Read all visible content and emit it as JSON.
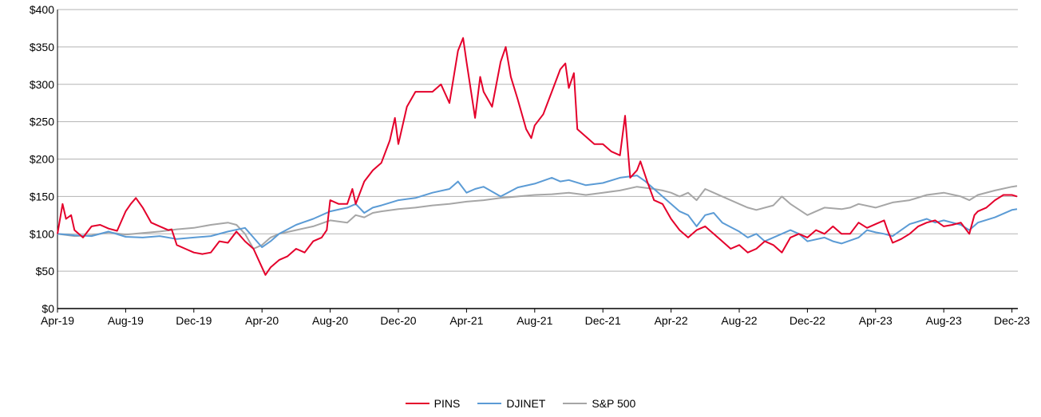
{
  "chart_data": {
    "type": "line",
    "title": "",
    "xlabel": "",
    "ylabel": "",
    "ylim": [
      0,
      400
    ],
    "xlim_months_from_apr19": [
      0,
      56.3
    ],
    "grid": true,
    "legend_position": "bottom",
    "y_ticks": [
      "$0",
      "$50",
      "$100",
      "$150",
      "$200",
      "$250",
      "$300",
      "$350",
      "$400"
    ],
    "x_ticks": [
      "Apr-19",
      "Aug-19",
      "Dec-19",
      "Apr-20",
      "Aug-20",
      "Dec-20",
      "Apr-21",
      "Aug-21",
      "Dec-21",
      "Apr-22",
      "Aug-22",
      "Dec-22",
      "Apr-23",
      "Aug-23",
      "Dec-23"
    ],
    "series": [
      {
        "name": "PINS",
        "color": "#e4002b",
        "points": [
          [
            0,
            100
          ],
          [
            0.3,
            140
          ],
          [
            0.5,
            120
          ],
          [
            0.8,
            125
          ],
          [
            1,
            105
          ],
          [
            1.5,
            95
          ],
          [
            2,
            110
          ],
          [
            2.5,
            112
          ],
          [
            3,
            107
          ],
          [
            3.5,
            104
          ],
          [
            4,
            130
          ],
          [
            4.3,
            140
          ],
          [
            4.6,
            148
          ],
          [
            5,
            135
          ],
          [
            5.5,
            115
          ],
          [
            6,
            110
          ],
          [
            6.5,
            105
          ],
          [
            6.7,
            106
          ],
          [
            7,
            85
          ],
          [
            7.5,
            80
          ],
          [
            8,
            75
          ],
          [
            8.5,
            73
          ],
          [
            9,
            75
          ],
          [
            9.5,
            90
          ],
          [
            10,
            88
          ],
          [
            10.5,
            103
          ],
          [
            11,
            90
          ],
          [
            11.5,
            80
          ],
          [
            12,
            55
          ],
          [
            12.2,
            45
          ],
          [
            12.5,
            55
          ],
          [
            13,
            65
          ],
          [
            13.5,
            70
          ],
          [
            14,
            80
          ],
          [
            14.5,
            75
          ],
          [
            15,
            90
          ],
          [
            15.5,
            95
          ],
          [
            15.8,
            105
          ],
          [
            16,
            145
          ],
          [
            16.5,
            140
          ],
          [
            17,
            140
          ],
          [
            17.3,
            160
          ],
          [
            17.5,
            140
          ],
          [
            18,
            170
          ],
          [
            18.5,
            185
          ],
          [
            19,
            195
          ],
          [
            19.5,
            225
          ],
          [
            19.8,
            255
          ],
          [
            20,
            220
          ],
          [
            20.5,
            270
          ],
          [
            21,
            290
          ],
          [
            21.5,
            290
          ],
          [
            22,
            290
          ],
          [
            22.5,
            300
          ],
          [
            23,
            275
          ],
          [
            23.5,
            345
          ],
          [
            23.8,
            362
          ],
          [
            24,
            330
          ],
          [
            24.2,
            300
          ],
          [
            24.5,
            255
          ],
          [
            24.8,
            310
          ],
          [
            25,
            290
          ],
          [
            25.5,
            270
          ],
          [
            26,
            330
          ],
          [
            26.3,
            350
          ],
          [
            26.6,
            310
          ],
          [
            27,
            280
          ],
          [
            27.5,
            240
          ],
          [
            27.8,
            228
          ],
          [
            28,
            245
          ],
          [
            28.5,
            260
          ],
          [
            29,
            290
          ],
          [
            29.5,
            320
          ],
          [
            29.8,
            328
          ],
          [
            30,
            295
          ],
          [
            30.3,
            315
          ],
          [
            30.5,
            240
          ],
          [
            31,
            230
          ],
          [
            31.5,
            220
          ],
          [
            32,
            220
          ],
          [
            32.5,
            210
          ],
          [
            33,
            205
          ],
          [
            33.3,
            258
          ],
          [
            33.6,
            175
          ],
          [
            34,
            185
          ],
          [
            34.2,
            197
          ],
          [
            34.6,
            170
          ],
          [
            35,
            145
          ],
          [
            35.5,
            140
          ],
          [
            36,
            120
          ],
          [
            36.5,
            105
          ],
          [
            37,
            95
          ],
          [
            37.5,
            105
          ],
          [
            38,
            110
          ],
          [
            38.5,
            100
          ],
          [
            39,
            90
          ],
          [
            39.5,
            80
          ],
          [
            40,
            85
          ],
          [
            40.5,
            75
          ],
          [
            41,
            80
          ],
          [
            41.5,
            90
          ],
          [
            42,
            85
          ],
          [
            42.5,
            75
          ],
          [
            43,
            95
          ],
          [
            43.5,
            100
          ],
          [
            44,
            95
          ],
          [
            44.5,
            105
          ],
          [
            45,
            100
          ],
          [
            45.5,
            110
          ],
          [
            46,
            100
          ],
          [
            46.5,
            100
          ],
          [
            47,
            115
          ],
          [
            47.5,
            108
          ],
          [
            48,
            113
          ],
          [
            48.5,
            118
          ],
          [
            48.7,
            105
          ],
          [
            49,
            88
          ],
          [
            49.5,
            93
          ],
          [
            50,
            100
          ],
          [
            50.5,
            110
          ],
          [
            51,
            115
          ],
          [
            51.5,
            118
          ],
          [
            52,
            110
          ],
          [
            52.5,
            112
          ],
          [
            53,
            115
          ],
          [
            53.5,
            100
          ],
          [
            53.8,
            125
          ],
          [
            54,
            130
          ],
          [
            54.5,
            135
          ],
          [
            55,
            145
          ],
          [
            55.5,
            152
          ],
          [
            56,
            152
          ],
          [
            56.3,
            150
          ]
        ]
      },
      {
        "name": "DJINET",
        "color": "#5b9bd5",
        "points": [
          [
            0,
            100
          ],
          [
            1,
            98
          ],
          [
            2,
            97
          ],
          [
            3,
            103
          ],
          [
            4,
            96
          ],
          [
            5,
            95
          ],
          [
            6,
            97
          ],
          [
            7,
            93
          ],
          [
            8,
            95
          ],
          [
            9,
            97
          ],
          [
            10,
            103
          ],
          [
            11,
            108
          ],
          [
            11.5,
            95
          ],
          [
            12,
            82
          ],
          [
            12.5,
            90
          ],
          [
            13,
            100
          ],
          [
            14,
            112
          ],
          [
            15,
            120
          ],
          [
            16,
            130
          ],
          [
            17,
            135
          ],
          [
            17.5,
            140
          ],
          [
            18,
            128
          ],
          [
            18.5,
            135
          ],
          [
            19,
            138
          ],
          [
            20,
            145
          ],
          [
            21,
            148
          ],
          [
            22,
            155
          ],
          [
            23,
            160
          ],
          [
            23.5,
            170
          ],
          [
            24,
            155
          ],
          [
            24.5,
            160
          ],
          [
            25,
            163
          ],
          [
            26,
            150
          ],
          [
            27,
            162
          ],
          [
            28,
            167
          ],
          [
            29,
            175
          ],
          [
            29.5,
            170
          ],
          [
            30,
            172
          ],
          [
            31,
            165
          ],
          [
            32,
            168
          ],
          [
            33,
            175
          ],
          [
            34,
            178
          ],
          [
            34.5,
            170
          ],
          [
            35,
            160
          ],
          [
            35.5,
            150
          ],
          [
            36,
            140
          ],
          [
            36.5,
            130
          ],
          [
            37,
            125
          ],
          [
            37.5,
            110
          ],
          [
            38,
            125
          ],
          [
            38.5,
            128
          ],
          [
            39,
            115
          ],
          [
            40,
            103
          ],
          [
            40.5,
            95
          ],
          [
            41,
            100
          ],
          [
            41.5,
            90
          ],
          [
            42,
            95
          ],
          [
            43,
            105
          ],
          [
            43.5,
            100
          ],
          [
            44,
            90
          ],
          [
            45,
            95
          ],
          [
            45.5,
            90
          ],
          [
            46,
            87
          ],
          [
            47,
            95
          ],
          [
            47.5,
            105
          ],
          [
            48,
            102
          ],
          [
            48.5,
            100
          ],
          [
            49,
            97
          ],
          [
            49.5,
            105
          ],
          [
            50,
            113
          ],
          [
            51,
            120
          ],
          [
            51.5,
            115
          ],
          [
            52,
            118
          ],
          [
            53,
            112
          ],
          [
            53.5,
            105
          ],
          [
            54,
            115
          ],
          [
            55,
            122
          ],
          [
            56,
            132
          ],
          [
            56.3,
            133
          ]
        ]
      },
      {
        "name": "S&P 500",
        "color": "#a6a6a6",
        "points": [
          [
            0,
            100
          ],
          [
            1,
            97
          ],
          [
            2,
            98
          ],
          [
            3,
            102
          ],
          [
            4,
            99
          ],
          [
            5,
            101
          ],
          [
            6,
            103
          ],
          [
            7,
            106
          ],
          [
            8,
            108
          ],
          [
            9,
            112
          ],
          [
            10,
            115
          ],
          [
            10.5,
            112
          ],
          [
            11,
            100
          ],
          [
            11.5,
            80
          ],
          [
            12,
            85
          ],
          [
            12.5,
            95
          ],
          [
            13,
            100
          ],
          [
            14,
            105
          ],
          [
            15,
            110
          ],
          [
            16,
            118
          ],
          [
            17,
            115
          ],
          [
            17.5,
            125
          ],
          [
            18,
            122
          ],
          [
            18.5,
            128
          ],
          [
            19,
            130
          ],
          [
            20,
            133
          ],
          [
            21,
            135
          ],
          [
            22,
            138
          ],
          [
            23,
            140
          ],
          [
            24,
            143
          ],
          [
            25,
            145
          ],
          [
            26,
            148
          ],
          [
            27,
            150
          ],
          [
            28,
            152
          ],
          [
            29,
            153
          ],
          [
            30,
            155
          ],
          [
            31,
            152
          ],
          [
            32,
            155
          ],
          [
            33,
            158
          ],
          [
            34,
            163
          ],
          [
            35,
            160
          ],
          [
            35.5,
            158
          ],
          [
            36,
            155
          ],
          [
            36.5,
            150
          ],
          [
            37,
            155
          ],
          [
            37.5,
            145
          ],
          [
            38,
            160
          ],
          [
            39,
            150
          ],
          [
            40,
            140
          ],
          [
            40.5,
            135
          ],
          [
            41,
            132
          ],
          [
            42,
            138
          ],
          [
            42.5,
            150
          ],
          [
            43,
            140
          ],
          [
            44,
            125
          ],
          [
            44.5,
            130
          ],
          [
            45,
            135
          ],
          [
            46,
            133
          ],
          [
            46.5,
            135
          ],
          [
            47,
            140
          ],
          [
            48,
            135
          ],
          [
            49,
            142
          ],
          [
            50,
            145
          ],
          [
            51,
            152
          ],
          [
            52,
            155
          ],
          [
            53,
            150
          ],
          [
            53.5,
            145
          ],
          [
            54,
            152
          ],
          [
            55,
            158
          ],
          [
            56,
            163
          ],
          [
            56.3,
            164
          ]
        ]
      }
    ]
  }
}
